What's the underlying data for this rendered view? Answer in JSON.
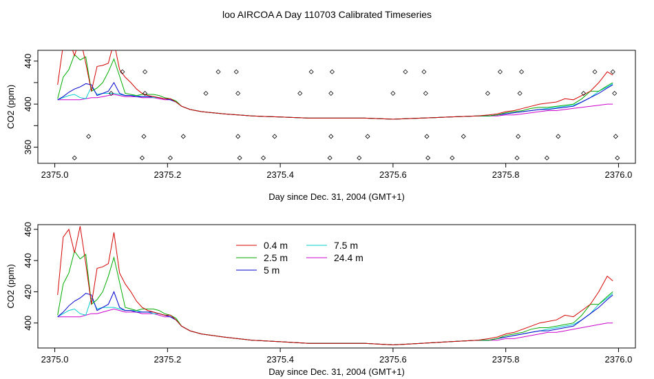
{
  "figure": {
    "title": "loo AIRCOA A  Day 110703  Calibrated Timeseries"
  },
  "chart_data": [
    {
      "type": "line",
      "panel": "top",
      "xlabel": "Day since Dec. 31, 2004 (GMT+1)",
      "ylabel": "CO2 (ppm)",
      "xlim": [
        2374.97,
        2376.03
      ],
      "ylim": [
        345,
        450
      ],
      "xticks": [
        2375.0,
        2375.2,
        2375.4,
        2375.6,
        2375.8,
        2376.0
      ],
      "xtick_labels": [
        "2375.0",
        "2375.2",
        "2375.4",
        "2375.6",
        "2375.8",
        "2376.0"
      ],
      "yticks": [
        360,
        400,
        440
      ],
      "ytick_labels": [
        "360",
        "400",
        "440"
      ],
      "y_minor_ticks": [
        380,
        420
      ],
      "grid": false,
      "x": [
        2375.005,
        2375.015,
        2375.025,
        2375.035,
        2375.045,
        2375.055,
        2375.065,
        2375.075,
        2375.085,
        2375.095,
        2375.105,
        2375.115,
        2375.125,
        2375.135,
        2375.145,
        2375.155,
        2375.165,
        2375.175,
        2375.185,
        2375.195,
        2375.205,
        2375.215,
        2375.225,
        2375.24,
        2375.26,
        2375.3,
        2375.35,
        2375.4,
        2375.45,
        2375.5,
        2375.55,
        2375.6,
        2375.65,
        2375.7,
        2375.75,
        2375.77,
        2375.785,
        2375.8,
        2375.815,
        2375.83,
        2375.845,
        2375.86,
        2375.875,
        2375.89,
        2375.905,
        2375.92,
        2375.935,
        2375.95,
        2375.965,
        2375.98,
        2375.99
      ],
      "series": [
        {
          "color": "#d40000",
          "values": [
            418,
            455,
            460,
            445,
            462,
            438,
            412,
            435,
            436,
            438,
            458,
            432,
            425,
            420,
            414,
            410,
            408,
            407,
            406,
            405,
            405,
            402,
            398,
            395,
            393,
            391,
            389,
            388,
            387,
            387,
            387,
            386,
            387,
            388,
            389,
            390,
            391,
            393,
            394,
            396,
            398,
            400,
            401,
            402,
            405,
            404,
            408,
            412,
            420,
            430,
            427
          ]
        },
        {
          "color": "#00aa00",
          "values": [
            405,
            425,
            432,
            446,
            441,
            444,
            412,
            415,
            420,
            430,
            442,
            426,
            410,
            409,
            408,
            409,
            409,
            409,
            408,
            406,
            405,
            403,
            398,
            395,
            393,
            391,
            389,
            388,
            387,
            387,
            387,
            386,
            387,
            388,
            389,
            389,
            390,
            392,
            393,
            394,
            396,
            397,
            397,
            398,
            399,
            400,
            405,
            412,
            412,
            417,
            420
          ]
        },
        {
          "color": "#0000cc",
          "values": [
            404,
            407,
            411,
            414,
            416,
            419,
            418,
            408,
            410,
            412,
            420,
            410,
            408,
            408,
            407,
            407,
            407,
            407,
            406,
            405,
            404,
            402,
            398,
            395,
            393,
            391,
            389,
            388,
            387,
            387,
            387,
            386,
            387,
            388,
            389,
            389,
            390,
            391,
            392,
            393,
            394,
            395,
            395,
            396,
            397,
            398,
            402,
            406,
            410,
            415,
            418
          ]
        },
        {
          "color": "#00cccc",
          "values": [
            404,
            406,
            408,
            409,
            406,
            405,
            416,
            409,
            410,
            410,
            410,
            409,
            408,
            408,
            408,
            407,
            407,
            406,
            406,
            405,
            404,
            402,
            398,
            395,
            393,
            391,
            389,
            388,
            387,
            387,
            387,
            386,
            387,
            388,
            389,
            389,
            390,
            391,
            392,
            393,
            394,
            395,
            396,
            397,
            398,
            399,
            402,
            406,
            412,
            416,
            419
          ]
        },
        {
          "color": "#cc00cc",
          "values": [
            404,
            404,
            404,
            404,
            404,
            405,
            406,
            406,
            407,
            408,
            409,
            408,
            407,
            407,
            407,
            406,
            406,
            406,
            405,
            404,
            404,
            402,
            398,
            395,
            393,
            391,
            389,
            388,
            387,
            387,
            387,
            386,
            387,
            388,
            389,
            389,
            389,
            390,
            390,
            391,
            392,
            393,
            394,
            394,
            395,
            396,
            397,
            398,
            399,
            400,
            400
          ]
        }
      ],
      "scatter": {
        "marker": "open-diamond",
        "points": [
          [
            2375.035,
            350
          ],
          [
            2375.06,
            370
          ],
          [
            2375.1,
            410
          ],
          [
            2375.12,
            430
          ],
          [
            2375.155,
            350
          ],
          [
            2375.158,
            370
          ],
          [
            2375.16,
            410
          ],
          [
            2375.16,
            430
          ],
          [
            2375.205,
            350
          ],
          [
            2375.228,
            370
          ],
          [
            2375.268,
            410
          ],
          [
            2375.29,
            430
          ],
          [
            2375.322,
            430
          ],
          [
            2375.325,
            410
          ],
          [
            2375.325,
            370
          ],
          [
            2375.328,
            350
          ],
          [
            2375.37,
            350
          ],
          [
            2375.39,
            370
          ],
          [
            2375.435,
            410
          ],
          [
            2375.455,
            430
          ],
          [
            2375.488,
            350
          ],
          [
            2375.49,
            370
          ],
          [
            2375.49,
            410
          ],
          [
            2375.492,
            430
          ],
          [
            2375.54,
            350
          ],
          [
            2375.555,
            370
          ],
          [
            2375.6,
            410
          ],
          [
            2375.622,
            430
          ],
          [
            2375.655,
            430
          ],
          [
            2375.658,
            410
          ],
          [
            2375.66,
            370
          ],
          [
            2375.662,
            350
          ],
          [
            2375.705,
            350
          ],
          [
            2375.725,
            370
          ],
          [
            2375.768,
            410
          ],
          [
            2375.79,
            430
          ],
          [
            2375.82,
            350
          ],
          [
            2375.822,
            370
          ],
          [
            2375.825,
            410
          ],
          [
            2375.828,
            430
          ],
          [
            2375.873,
            350
          ],
          [
            2375.893,
            370
          ],
          [
            2375.938,
            410
          ],
          [
            2375.958,
            430
          ],
          [
            2375.99,
            430
          ],
          [
            2375.993,
            410
          ],
          [
            2375.995,
            370
          ],
          [
            2375.998,
            350
          ]
        ]
      }
    },
    {
      "type": "line",
      "panel": "bottom",
      "xlabel": "Day since Dec. 31, 2004 (GMT+1)",
      "ylabel": "CO2 (ppm)",
      "xlim": [
        2374.97,
        2376.03
      ],
      "ylim": [
        384,
        463
      ],
      "xticks": [
        2375.0,
        2375.2,
        2375.4,
        2375.6,
        2375.8,
        2376.0
      ],
      "xtick_labels": [
        "2375.0",
        "2375.2",
        "2375.4",
        "2375.6",
        "2375.8",
        "2376.0"
      ],
      "yticks": [
        400,
        420,
        440,
        460
      ],
      "ytick_labels": [
        "400",
        "420",
        "440",
        "460"
      ],
      "grid": false,
      "legend": "top-left-inside",
      "x": [
        2375.005,
        2375.015,
        2375.025,
        2375.035,
        2375.045,
        2375.055,
        2375.065,
        2375.075,
        2375.085,
        2375.095,
        2375.105,
        2375.115,
        2375.125,
        2375.135,
        2375.145,
        2375.155,
        2375.165,
        2375.175,
        2375.185,
        2375.195,
        2375.205,
        2375.215,
        2375.225,
        2375.24,
        2375.26,
        2375.3,
        2375.35,
        2375.4,
        2375.45,
        2375.5,
        2375.55,
        2375.6,
        2375.65,
        2375.7,
        2375.75,
        2375.77,
        2375.785,
        2375.8,
        2375.815,
        2375.83,
        2375.845,
        2375.86,
        2375.875,
        2375.89,
        2375.905,
        2375.92,
        2375.935,
        2375.95,
        2375.965,
        2375.98,
        2375.99
      ],
      "series": [
        {
          "name": "0.4 m",
          "color": "#d40000",
          "values": [
            418,
            455,
            460,
            445,
            462,
            438,
            412,
            435,
            436,
            438,
            458,
            432,
            425,
            420,
            414,
            410,
            408,
            407,
            406,
            405,
            405,
            402,
            398,
            395,
            393,
            391,
            389,
            388,
            387,
            387,
            387,
            386,
            387,
            388,
            389,
            390,
            391,
            393,
            394,
            396,
            398,
            400,
            401,
            402,
            405,
            404,
            408,
            412,
            420,
            430,
            427
          ]
        },
        {
          "name": "2.5 m",
          "color": "#00aa00",
          "values": [
            405,
            425,
            432,
            446,
            441,
            444,
            412,
            415,
            420,
            430,
            442,
            426,
            410,
            409,
            408,
            409,
            409,
            409,
            408,
            406,
            405,
            403,
            398,
            395,
            393,
            391,
            389,
            388,
            387,
            387,
            387,
            386,
            387,
            388,
            389,
            389,
            390,
            392,
            393,
            394,
            396,
            397,
            397,
            398,
            399,
            400,
            405,
            412,
            412,
            417,
            420
          ]
        },
        {
          "name": "5 m",
          "color": "#0000cc",
          "values": [
            404,
            407,
            411,
            414,
            416,
            419,
            418,
            408,
            410,
            412,
            420,
            410,
            408,
            408,
            407,
            407,
            407,
            407,
            406,
            405,
            404,
            402,
            398,
            395,
            393,
            391,
            389,
            388,
            387,
            387,
            387,
            386,
            387,
            388,
            389,
            389,
            390,
            391,
            392,
            393,
            394,
            395,
            395,
            396,
            397,
            398,
            402,
            406,
            410,
            415,
            418
          ]
        },
        {
          "name": "7.5 m",
          "color": "#00cccc",
          "values": [
            404,
            406,
            408,
            409,
            406,
            405,
            416,
            409,
            410,
            410,
            410,
            409,
            408,
            408,
            408,
            407,
            407,
            406,
            406,
            405,
            404,
            402,
            398,
            395,
            393,
            391,
            389,
            388,
            387,
            387,
            387,
            386,
            387,
            388,
            389,
            389,
            390,
            391,
            392,
            393,
            394,
            395,
            396,
            397,
            398,
            399,
            402,
            406,
            412,
            416,
            419
          ]
        },
        {
          "name": "24.4 m",
          "color": "#cc00cc",
          "values": [
            404,
            404,
            404,
            404,
            404,
            405,
            406,
            406,
            407,
            408,
            409,
            408,
            407,
            407,
            407,
            406,
            406,
            406,
            405,
            404,
            404,
            402,
            398,
            395,
            393,
            391,
            389,
            388,
            387,
            387,
            387,
            386,
            387,
            388,
            389,
            389,
            389,
            390,
            390,
            391,
            392,
            393,
            394,
            394,
            395,
            396,
            397,
            398,
            399,
            400,
            400
          ]
        }
      ]
    }
  ]
}
